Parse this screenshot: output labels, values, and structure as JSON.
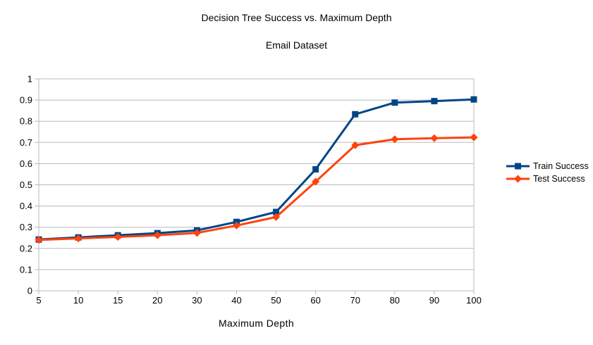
{
  "chart_data": {
    "type": "line",
    "title": "Decision Tree Success vs. Maximum Depth",
    "subtitle": "Email Dataset",
    "xlabel": "Maximum Depth",
    "ylabel": "",
    "categories": [
      "5",
      "10",
      "15",
      "20",
      "30",
      "40",
      "50",
      "60",
      "70",
      "80",
      "90",
      "100"
    ],
    "y_tick_labels": [
      "0",
      "0.1",
      "0.2",
      "0.3",
      "0.4",
      "0.5",
      "0.6",
      "0.7",
      "0.8",
      "0.9",
      "1"
    ],
    "ylim": [
      0,
      1
    ],
    "grid": "horizontal-only",
    "legend_position": "right",
    "series": [
      {
        "name": "Train Success",
        "marker": "square",
        "color": "#004586",
        "values": [
          0.242,
          0.252,
          0.262,
          0.272,
          0.285,
          0.325,
          0.372,
          0.573,
          0.833,
          0.888,
          0.895,
          0.903
        ]
      },
      {
        "name": "Test Success",
        "marker": "diamond",
        "color": "#ff420e",
        "values": [
          0.24,
          0.247,
          0.254,
          0.262,
          0.273,
          0.308,
          0.348,
          0.515,
          0.687,
          0.715,
          0.72,
          0.724
        ]
      }
    ],
    "colors": {
      "grid": "#b9b9b9",
      "border": "#b9b9b9",
      "text": "#000000",
      "background": "#ffffff"
    }
  }
}
